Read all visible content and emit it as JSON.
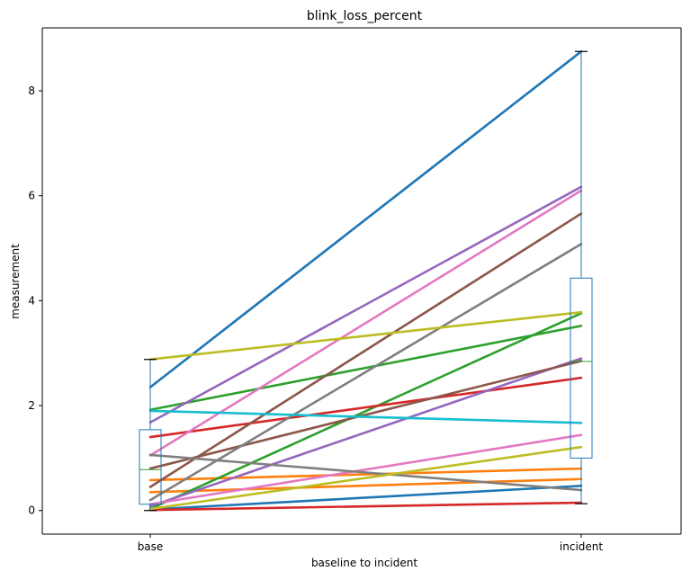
{
  "chart_data": {
    "type": "line",
    "title": "blink_loss_percent",
    "xlabel": "baseline to incident",
    "ylabel": "measurement",
    "categories": [
      "base",
      "incident"
    ],
    "yticks": [
      0,
      2,
      4,
      6,
      8
    ],
    "ylim": [
      -0.45,
      9.2
    ],
    "grid": false,
    "legend": "none",
    "series": [
      {
        "values": [
          2.35,
          8.75
        ],
        "color": "#1f77b4"
      },
      {
        "values": [
          0.02,
          0.47
        ],
        "color": "#1f77b4"
      },
      {
        "values": [
          0.58,
          0.8
        ],
        "color": "#ff7f0e"
      },
      {
        "values": [
          0.35,
          0.6
        ],
        "color": "#ff7f0e"
      },
      {
        "values": [
          1.92,
          3.52
        ],
        "color": "#2ca02c"
      },
      {
        "values": [
          0.03,
          3.76
        ],
        "color": "#2ca02c"
      },
      {
        "values": [
          1.4,
          2.53
        ],
        "color": "#d62728"
      },
      {
        "values": [
          0.01,
          0.15
        ],
        "color": "#d62728"
      },
      {
        "values": [
          1.68,
          6.17
        ],
        "color": "#9467bd"
      },
      {
        "values": [
          0.08,
          2.9
        ],
        "color": "#9467bd"
      },
      {
        "values": [
          0.45,
          5.66
        ],
        "color": "#8c564b"
      },
      {
        "values": [
          0.8,
          2.85
        ],
        "color": "#8c564b"
      },
      {
        "values": [
          1.05,
          6.1
        ],
        "color": "#e377c2"
      },
      {
        "values": [
          0.12,
          1.44
        ],
        "color": "#e377c2"
      },
      {
        "values": [
          0.2,
          5.08
        ],
        "color": "#7f7f7f"
      },
      {
        "values": [
          1.06,
          0.39
        ],
        "color": "#7f7f7f"
      },
      {
        "values": [
          2.88,
          3.78
        ],
        "color": "#bcbd22"
      },
      {
        "values": [
          0.03,
          1.21
        ],
        "color": "#bcbd22"
      },
      {
        "values": [
          1.9,
          1.67
        ],
        "color": "#17becf"
      }
    ],
    "boxplots": [
      {
        "category": "base",
        "whisker_low": 0.0,
        "q1": 0.12,
        "median": 0.78,
        "q3": 1.54,
        "whisker_high": 2.88,
        "color": "#1f77b4",
        "median_color": "#2ca02c"
      },
      {
        "category": "incident",
        "whisker_low": 0.13,
        "q1": 1.0,
        "median": 2.84,
        "q3": 4.43,
        "whisker_high": 8.75,
        "color": "#1f77b4",
        "median_color": "#2ca02c"
      }
    ]
  }
}
